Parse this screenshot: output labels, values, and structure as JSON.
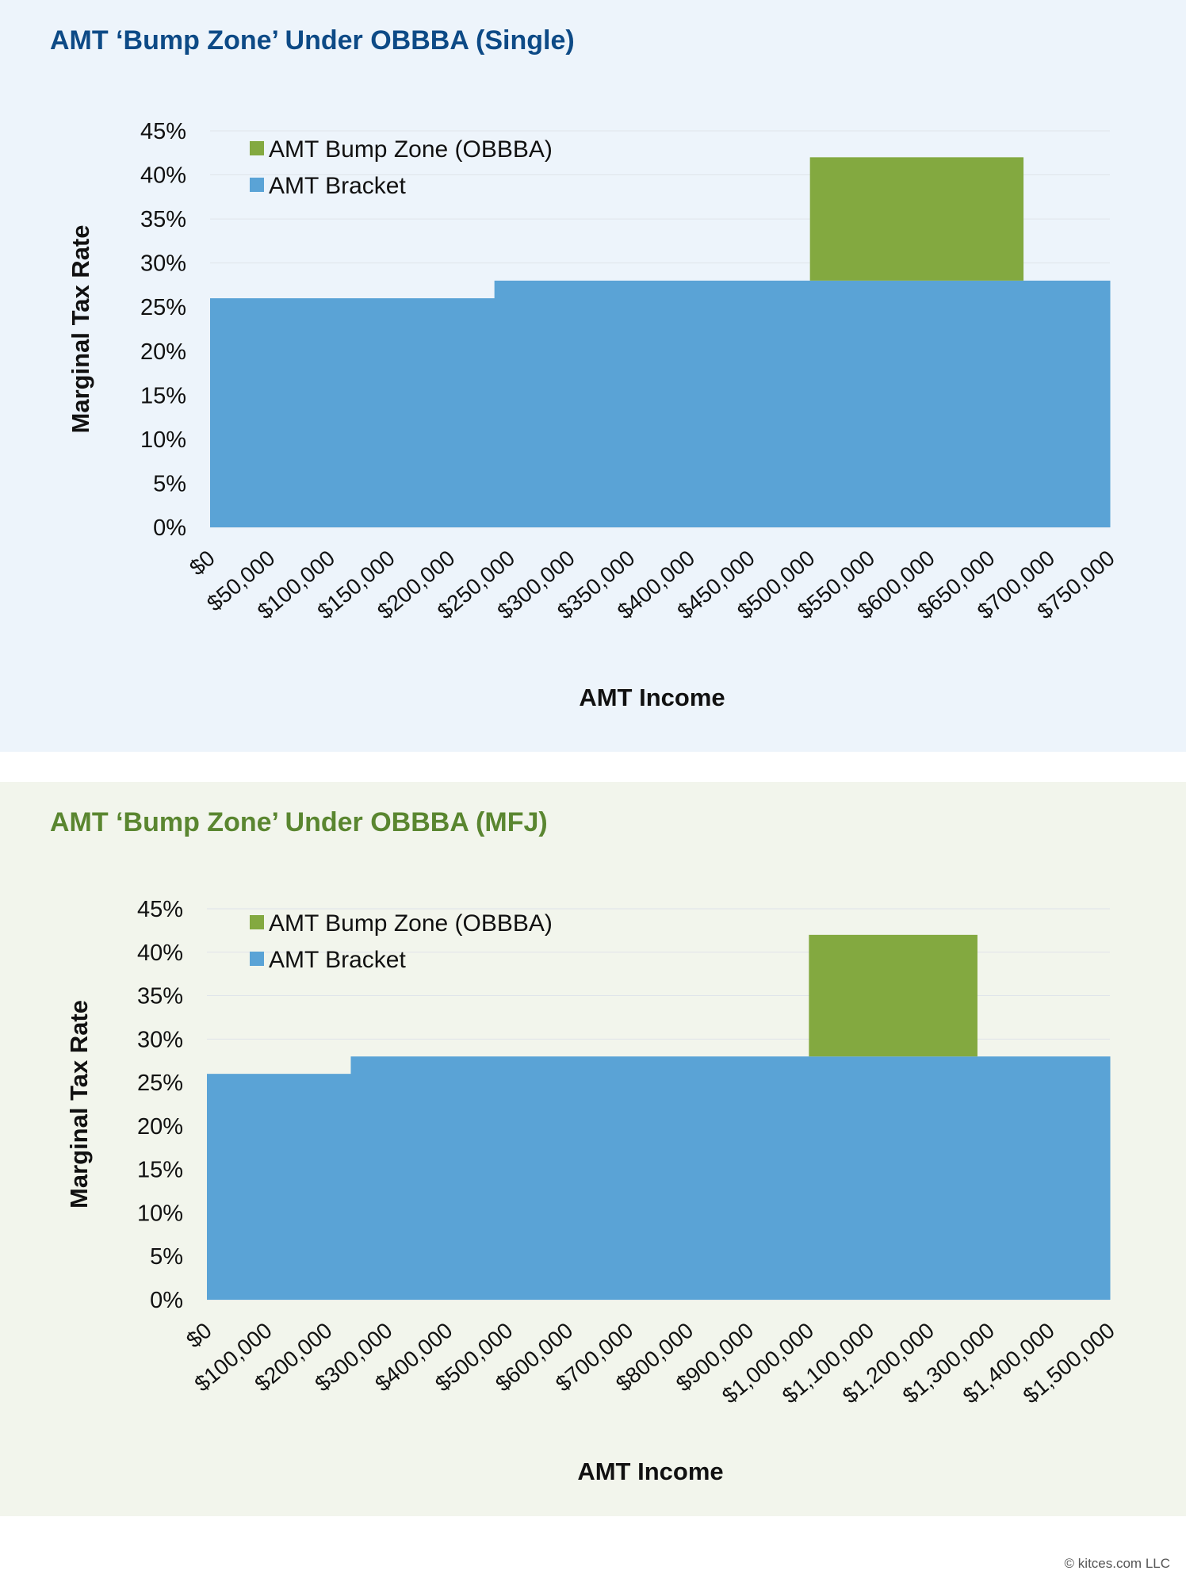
{
  "colors": {
    "bracket": "#5aa3d6",
    "bump": "#83a940",
    "grid": "#dfe4ea",
    "text": "#111111"
  },
  "footer": "© kitces.com LLC",
  "chart_data": [
    {
      "type": "area",
      "title": "AMT ‘Bump Zone’ Under OBBBA (Single)",
      "xlabel": "AMT Income",
      "ylabel": "Marginal Tax Rate",
      "xlim": [
        0,
        750000
      ],
      "ylim": [
        0,
        45
      ],
      "yticks": [
        "0%",
        "5%",
        "10%",
        "15%",
        "20%",
        "25%",
        "30%",
        "35%",
        "40%",
        "45%"
      ],
      "xticks": [
        "$0",
        "$50,000",
        "$100,000",
        "$150,000",
        "$200,000",
        "$250,000",
        "$300,000",
        "$350,000",
        "$400,000",
        "$450,000",
        "$500,000",
        "$550,000",
        "$600,000",
        "$650,000",
        "$700,000",
        "$750,000"
      ],
      "legend": [
        "AMT Bump Zone (OBBBA)",
        "AMT Bracket"
      ],
      "series": [
        {
          "name": "AMT Bracket",
          "steps": [
            {
              "from": 0,
              "to": 237000,
              "rate": 26
            },
            {
              "from": 237000,
              "to": 750000,
              "rate": 28
            }
          ]
        },
        {
          "name": "AMT Bump Zone (OBBBA)",
          "steps": [
            {
              "from": 500000,
              "to": 678000,
              "rate": 42
            }
          ]
        }
      ]
    },
    {
      "type": "area",
      "title": "AMT ‘Bump Zone’ Under OBBBA (MFJ)",
      "xlabel": "AMT Income",
      "ylabel": "Marginal Tax Rate",
      "xlim": [
        0,
        1500000
      ],
      "ylim": [
        0,
        45
      ],
      "yticks": [
        "0%",
        "5%",
        "10%",
        "15%",
        "20%",
        "25%",
        "30%",
        "35%",
        "40%",
        "45%"
      ],
      "xticks": [
        "$0",
        "$100,000",
        "$200,000",
        "$300,000",
        "$400,000",
        "$500,000",
        "$600,000",
        "$700,000",
        "$800,000",
        "$900,000",
        "$1,000,000",
        "$1,100,000",
        "$1,200,000",
        "$1,300,000",
        "$1,400,000",
        "$1,500,000"
      ],
      "legend": [
        "AMT Bump Zone (OBBBA)",
        "AMT Bracket"
      ],
      "series": [
        {
          "name": "AMT Bracket",
          "steps": [
            {
              "from": 0,
              "to": 239000,
              "rate": 26
            },
            {
              "from": 239000,
              "to": 1500000,
              "rate": 28
            }
          ]
        },
        {
          "name": "AMT Bump Zone (OBBBA)",
          "steps": [
            {
              "from": 1000000,
              "to": 1280000,
              "rate": 42
            }
          ]
        }
      ]
    }
  ]
}
